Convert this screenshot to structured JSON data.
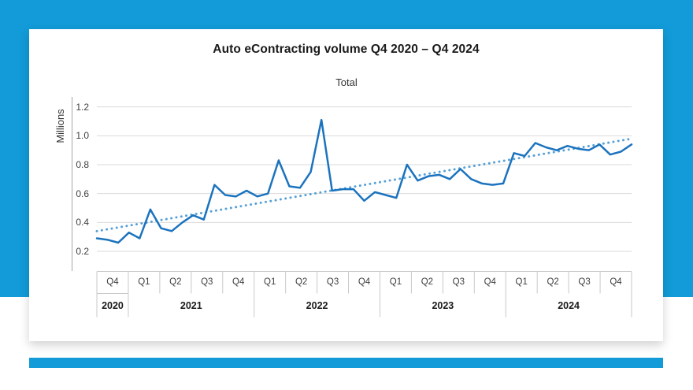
{
  "page": {
    "background_top_color": "#129bd8",
    "background_bottom_color": "#ffffff",
    "card_color": "#ffffff",
    "bottom_bar_color": "#129bd8"
  },
  "chart": {
    "title": "Auto eContracting volume Q4 2020 – Q4 2024",
    "legend_label": "Total",
    "y_axis_title": "Millions"
  },
  "colors": {
    "series_line": "#1b73be",
    "trend_line": "#55a0d6",
    "gridline": "#d9d9d9",
    "axis_line": "#a6a6a6",
    "table_line": "#c9c9c9"
  },
  "chart_data": {
    "type": "line",
    "title": "Auto eContracting volume Q4 2020 – Q4 2024",
    "ylabel": "Millions",
    "ylim": [
      0.2,
      1.2
    ],
    "yticks": [
      0.2,
      0.4,
      0.6,
      0.8,
      1.0,
      1.2
    ],
    "grid": "horizontal",
    "legend_position": "top-center",
    "x_axis": {
      "quarter_cells": [
        "Q4",
        "Q1",
        "Q2",
        "Q3",
        "Q4",
        "Q1",
        "Q2",
        "Q3",
        "Q4",
        "Q1",
        "Q2",
        "Q3",
        "Q4",
        "Q1",
        "Q2",
        "Q3",
        "Q4"
      ],
      "year_groups": [
        {
          "label": "2020",
          "span": 1
        },
        {
          "label": "2021",
          "span": 4
        },
        {
          "label": "2022",
          "span": 4
        },
        {
          "label": "2023",
          "span": 4
        },
        {
          "label": "2024",
          "span": 4
        }
      ],
      "points_per_quarter": 3
    },
    "series": [
      {
        "name": "Total",
        "style": "solid",
        "values": [
          0.29,
          0.28,
          0.26,
          0.33,
          0.29,
          0.49,
          0.36,
          0.34,
          0.4,
          0.45,
          0.42,
          0.66,
          0.59,
          0.58,
          0.62,
          0.58,
          0.6,
          0.83,
          0.65,
          0.64,
          0.75,
          1.11,
          0.62,
          0.63,
          0.63,
          0.55,
          0.61,
          0.59,
          0.57,
          0.8,
          0.69,
          0.72,
          0.73,
          0.7,
          0.77,
          0.7,
          0.67,
          0.66,
          0.67,
          0.88,
          0.86,
          0.95,
          0.92,
          0.9,
          0.93,
          0.91,
          0.9,
          0.94,
          0.87,
          0.89,
          0.94
        ]
      }
    ],
    "trendline": {
      "name": "Total trend",
      "style": "dotted",
      "start_value": 0.34,
      "end_value": 0.98
    }
  }
}
